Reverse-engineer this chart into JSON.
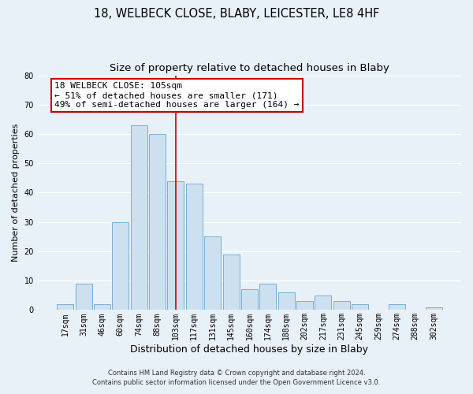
{
  "title1": "18, WELBECK CLOSE, BLABY, LEICESTER, LE8 4HF",
  "title2": "Size of property relative to detached houses in Blaby",
  "xlabel": "Distribution of detached houses by size in Blaby",
  "ylabel": "Number of detached properties",
  "bar_labels": [
    "17sqm",
    "31sqm",
    "46sqm",
    "60sqm",
    "74sqm",
    "88sqm",
    "103sqm",
    "117sqm",
    "131sqm",
    "145sqm",
    "160sqm",
    "174sqm",
    "188sqm",
    "202sqm",
    "217sqm",
    "231sqm",
    "245sqm",
    "259sqm",
    "274sqm",
    "288sqm",
    "302sqm"
  ],
  "bar_values": [
    2,
    9,
    2,
    30,
    63,
    60,
    44,
    43,
    25,
    19,
    7,
    9,
    6,
    3,
    5,
    3,
    2,
    0,
    2,
    0,
    1
  ],
  "bar_color": "#cce0f0",
  "bar_edge_color": "#7ab0d4",
  "vline_x_index": 6,
  "vline_color": "#cc0000",
  "annotation_line1": "18 WELBECK CLOSE: 105sqm",
  "annotation_line2": "← 51% of detached houses are smaller (171)",
  "annotation_line3": "49% of semi-detached houses are larger (164) →",
  "annotation_box_color": "#ffffff",
  "annotation_box_edge": "#cc0000",
  "ylim": [
    0,
    80
  ],
  "yticks": [
    0,
    10,
    20,
    30,
    40,
    50,
    60,
    70,
    80
  ],
  "footer1": "Contains HM Land Registry data © Crown copyright and database right 2024.",
  "footer2": "Contains public sector information licensed under the Open Government Licence v3.0.",
  "background_color": "#e8f0f8",
  "plot_background": "#e8f0f8",
  "grid_color": "#ffffff",
  "title1_fontsize": 10.5,
  "title2_fontsize": 9.5,
  "xlabel_fontsize": 9,
  "ylabel_fontsize": 8,
  "tick_fontsize": 7,
  "annotation_fontsize": 8,
  "footer_fontsize": 6
}
